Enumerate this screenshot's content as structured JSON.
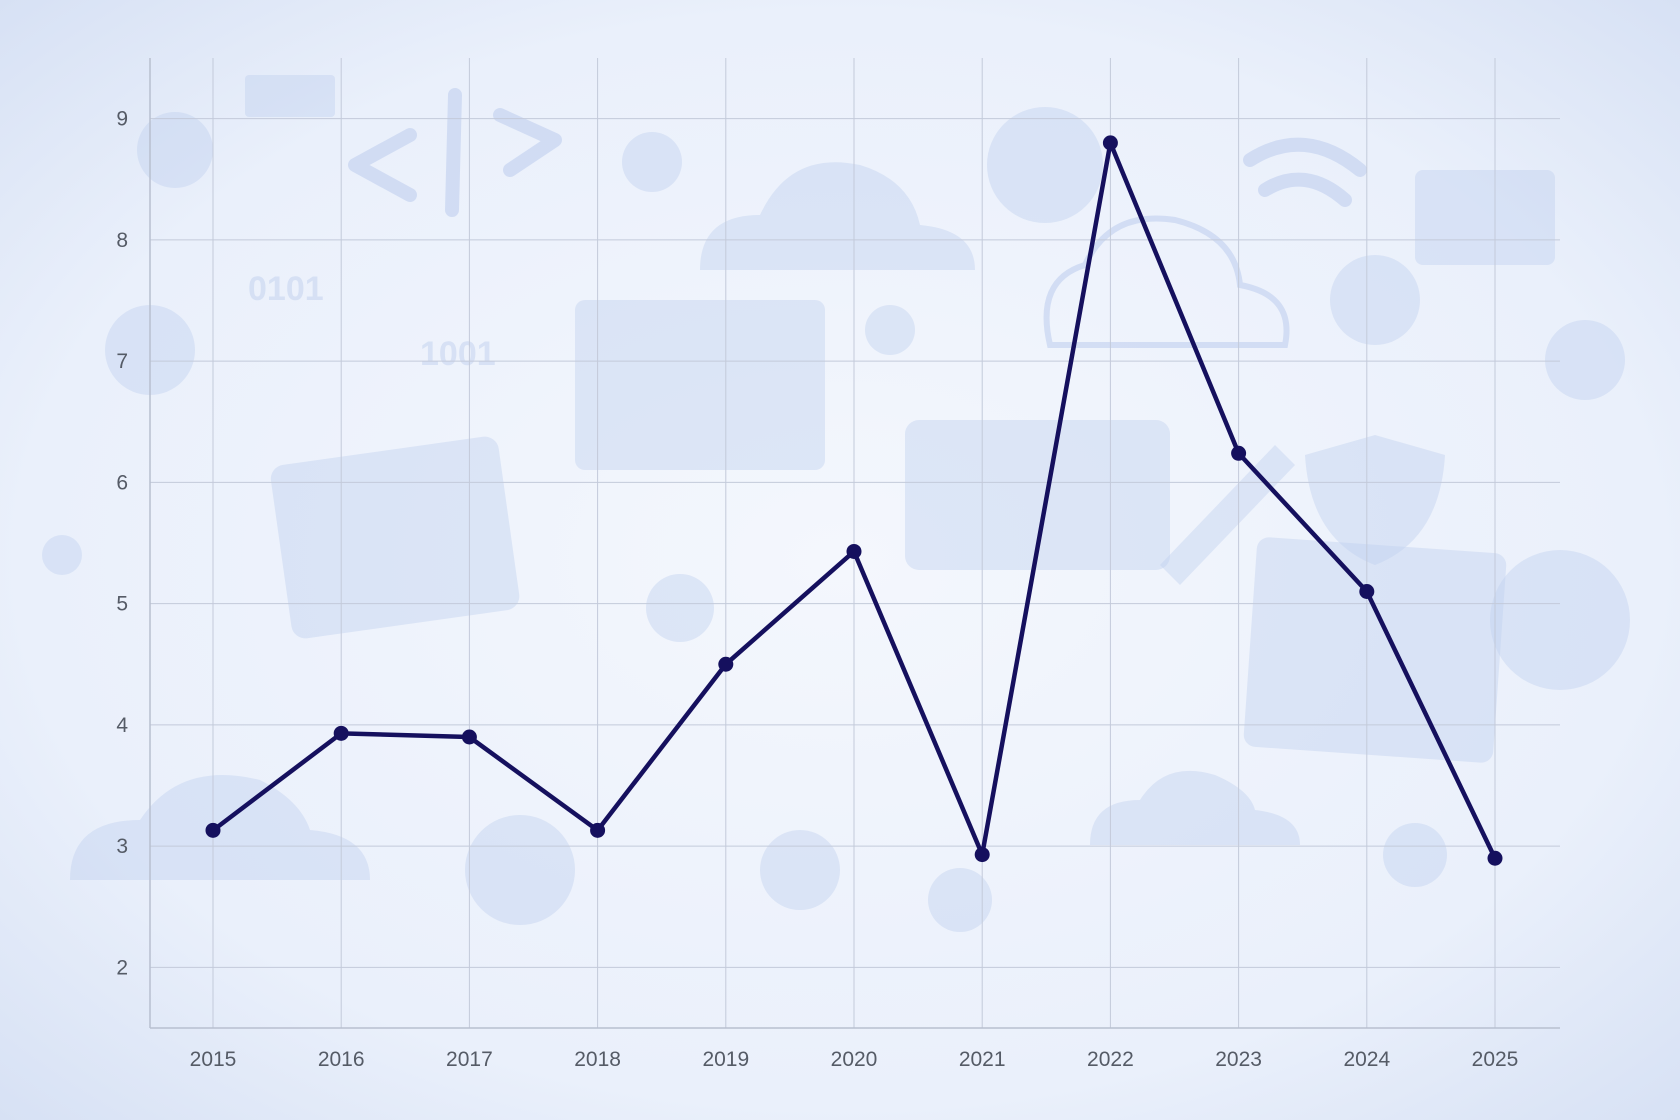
{
  "chart_data": {
    "type": "line",
    "title": "",
    "xlabel": "",
    "ylabel": "",
    "x": [
      "2015",
      "2016",
      "2017",
      "2018",
      "2019",
      "2020",
      "2021",
      "2022",
      "2023",
      "2024",
      "2025"
    ],
    "series": [
      {
        "values": [
          3.13,
          3.93,
          3.9,
          3.13,
          4.5,
          5.43,
          2.93,
          8.8,
          6.24,
          5.1,
          2.9
        ]
      }
    ],
    "ylim": [
      1.5,
      9.5
    ],
    "yticks": [
      "2",
      "3",
      "4",
      "5",
      "6",
      "7",
      "8",
      "9"
    ],
    "grid": true,
    "legend": "none",
    "colors": {
      "line": "#15105e",
      "marker": "#15105e",
      "grid": "#c3cada",
      "axis": "#b8bfcf",
      "tick_text": "#555b66",
      "background": "#e9effb"
    }
  }
}
